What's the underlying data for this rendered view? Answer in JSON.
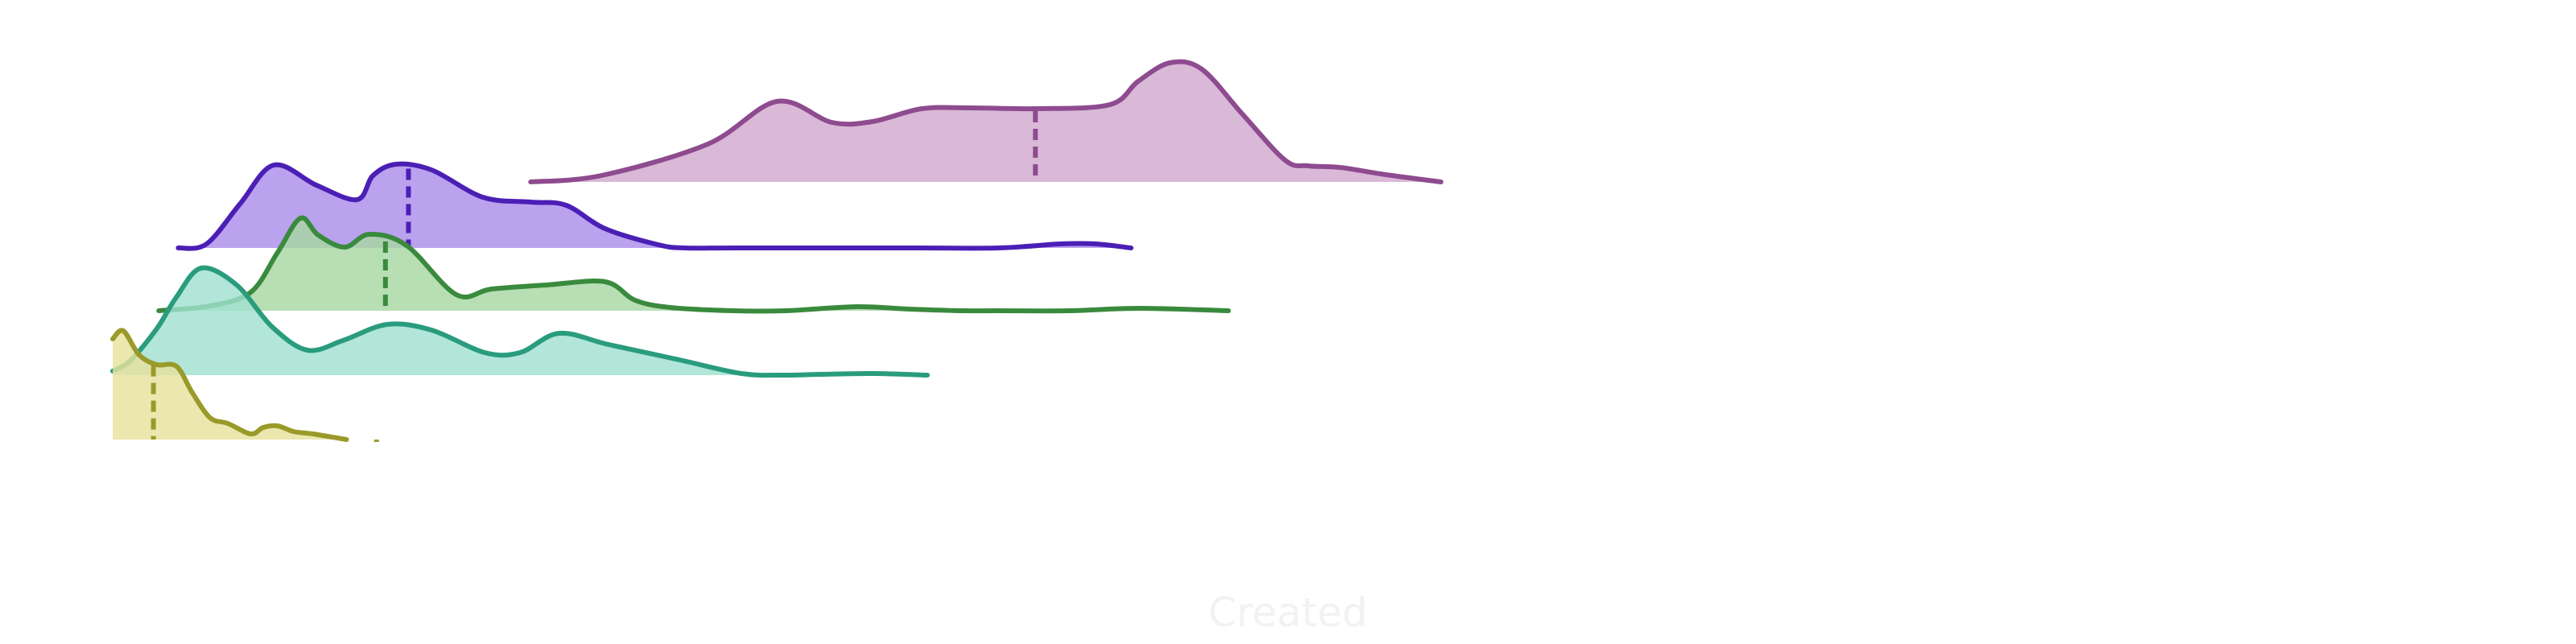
{
  "chart_data": {
    "type": "ridgeline",
    "title": "",
    "xlabel": "Created",
    "ylabel": "",
    "xlim": [
      0,
      100
    ],
    "grid": false,
    "legend": "none",
    "series": [
      {
        "color": "#8e4b8f",
        "fill": "#d1a8d0",
        "x": [
          23.6,
          27.6,
          33.6,
          37.5,
          40.6,
          42.9,
          45.7,
          48.5,
          52.1,
          56.3,
          57.9,
          59.7,
          61.5,
          63.8,
          66.2,
          67.5,
          69.3,
          71.9,
          75.0
        ],
        "density": [
          0.0,
          0.08,
          0.47,
          1.0,
          0.74,
          0.75,
          0.91,
          0.92,
          0.91,
          0.96,
          1.25,
          1.48,
          1.4,
          0.84,
          0.27,
          0.2,
          0.18,
          0.09,
          0.0
        ],
        "median": 52.1
      },
      {
        "color": "#4b1fb5",
        "fill": "#ab8eec",
        "x": [
          3.7,
          5.3,
          7.2,
          9.1,
          11.5,
          13.8,
          14.7,
          16.0,
          18.0,
          20.9,
          23.6,
          25.6,
          27.8,
          30.8,
          32.3,
          35.0,
          40.0,
          45.0,
          50.0,
          53.5,
          55.5,
          57.5
        ],
        "density": [
          0.0,
          0.05,
          0.55,
          1.03,
          0.78,
          0.6,
          0.9,
          1.04,
          0.97,
          0.63,
          0.57,
          0.53,
          0.24,
          0.04,
          0.0,
          0.0,
          0.0,
          0.0,
          0.0,
          0.05,
          0.05,
          0.0
        ],
        "median": 16.7
      },
      {
        "color": "#3a8a3d",
        "fill": "#a7d8a2",
        "x": [
          2.6,
          5.5,
          7.8,
          9.3,
          10.6,
          11.6,
          13.1,
          14.5,
          16.6,
          19.4,
          21.4,
          24.5,
          27.8,
          29.5,
          31.5,
          35.0,
          38.0,
          42.0,
          45.0,
          48.0,
          50.0,
          54.0,
          58.0,
          63.0
        ],
        "density": [
          0.0,
          0.06,
          0.23,
          0.72,
          1.15,
          0.94,
          0.79,
          0.95,
          0.81,
          0.2,
          0.27,
          0.32,
          0.36,
          0.13,
          0.04,
          0.0,
          0.0,
          0.05,
          0.02,
          0.0,
          0.0,
          0.0,
          0.03,
          0.0
        ],
        "median": 15.4
      },
      {
        "color": "#2a9c7e",
        "fill": "#a0e0cf",
        "x": [
          0.0,
          1.0,
          2.5,
          3.6,
          5.0,
          7.0,
          9.0,
          11.0,
          13.0,
          15.5,
          18.0,
          21.0,
          23.0,
          25.2,
          28.0,
          32.0,
          35.5,
          38.0,
          40.0,
          43.0,
          46.0
        ],
        "density": [
          0.05,
          0.18,
          0.58,
          0.97,
          1.33,
          1.12,
          0.6,
          0.31,
          0.43,
          0.63,
          0.56,
          0.28,
          0.28,
          0.52,
          0.38,
          0.19,
          0.02,
          0.0,
          0.01,
          0.02,
          0.0
        ]
      },
      {
        "color": "#9a9a2a",
        "fill": "#e6e29e",
        "x": [
          0.0,
          0.6,
          1.5,
          2.5,
          3.6,
          4.5,
          5.5,
          6.5,
          7.8,
          8.5,
          9.3,
          10.2,
          11.3,
          12.4,
          13.2
        ],
        "density": [
          1.25,
          1.35,
          1.05,
          0.93,
          0.91,
          0.58,
          0.27,
          0.2,
          0.07,
          0.15,
          0.17,
          0.1,
          0.07,
          0.03,
          0.0
        ],
        "median": 2.3,
        "extra_dash": 14.9
      }
    ]
  }
}
